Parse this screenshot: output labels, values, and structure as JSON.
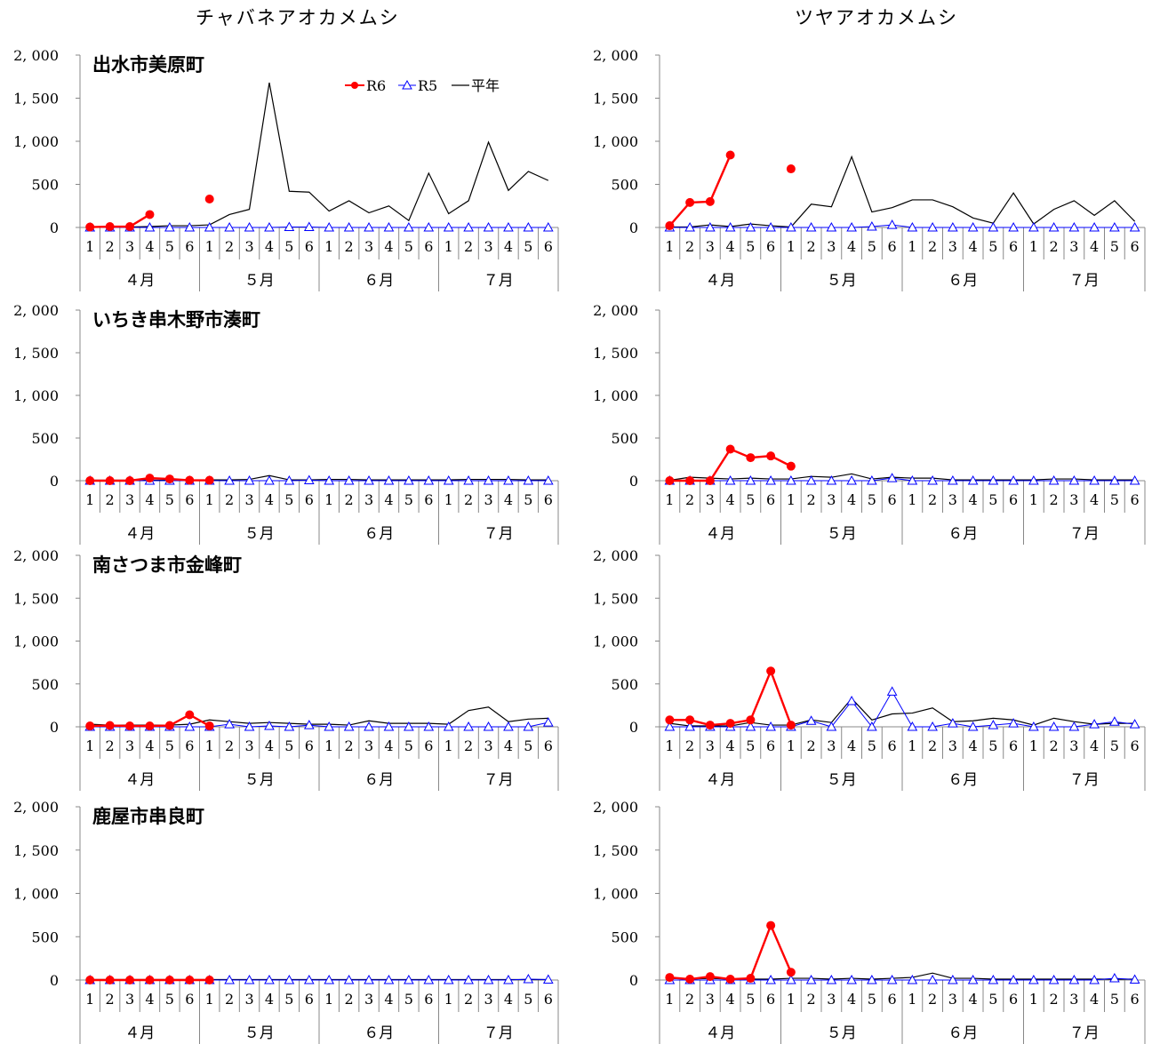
{
  "columns": [
    "チャバネアオカメムシ",
    "ツヤアオカメムシ"
  ],
  "legend": {
    "r6": "R6",
    "r5": "R5",
    "avg": "平年"
  },
  "colors": {
    "r6": "#ff0000",
    "r5": "#0000ff",
    "avg": "#000000"
  },
  "months": [
    "４月",
    "５月",
    "６月",
    "７月"
  ],
  "sub_ticks": [
    "1",
    "2",
    "3",
    "4",
    "5",
    "6"
  ],
  "y_ticks": [
    "0",
    "500",
    "1, 000",
    "1, 500",
    "2, 000"
  ],
  "chart_data": [
    {
      "type": "line",
      "location": "出水市美原町",
      "column": 0,
      "ylim": [
        0,
        2000
      ],
      "legend_placement": "top",
      "series": [
        {
          "name": "R6",
          "values": [
            5,
            10,
            10,
            150,
            null,
            null,
            330,
            null,
            null,
            null,
            null,
            null,
            null,
            null,
            null,
            null,
            null,
            null,
            null,
            null,
            null,
            null,
            null,
            null
          ]
        },
        {
          "name": "R5",
          "values": [
            0,
            0,
            0,
            0,
            0,
            0,
            0,
            0,
            0,
            0,
            5,
            5,
            0,
            0,
            0,
            0,
            0,
            0,
            0,
            0,
            0,
            0,
            0,
            0
          ]
        },
        {
          "name": "平年",
          "values": [
            10,
            5,
            5,
            10,
            20,
            20,
            30,
            150,
            210,
            1680,
            420,
            410,
            190,
            310,
            170,
            250,
            80,
            630,
            160,
            310,
            990,
            430,
            650,
            545
          ]
        }
      ]
    },
    {
      "type": "line",
      "location": "",
      "column": 1,
      "ylim": [
        0,
        2000
      ],
      "series": [
        {
          "name": "R6",
          "values": [
            20,
            290,
            300,
            840,
            null,
            null,
            680,
            null,
            null,
            null,
            null,
            null,
            null,
            null,
            null,
            null,
            null,
            null,
            null,
            null,
            null,
            null,
            null,
            null
          ]
        },
        {
          "name": "R5",
          "values": [
            0,
            0,
            0,
            0,
            0,
            0,
            0,
            0,
            0,
            0,
            10,
            30,
            0,
            0,
            0,
            0,
            0,
            0,
            0,
            0,
            0,
            0,
            0,
            0
          ]
        },
        {
          "name": "平年",
          "values": [
            5,
            5,
            30,
            10,
            40,
            20,
            5,
            270,
            240,
            820,
            180,
            230,
            320,
            320,
            240,
            110,
            50,
            400,
            40,
            210,
            310,
            140,
            310,
            70
          ]
        }
      ]
    },
    {
      "type": "line",
      "location": "いちき串木野市湊町",
      "column": 0,
      "ylim": [
        0,
        2000
      ],
      "series": [
        {
          "name": "R6",
          "values": [
            0,
            0,
            0,
            30,
            20,
            5,
            5,
            null,
            null,
            null,
            null,
            null,
            null,
            null,
            null,
            null,
            null,
            null,
            null,
            null,
            null,
            null,
            null,
            null
          ]
        },
        {
          "name": "R5",
          "values": [
            0,
            0,
            0,
            0,
            0,
            0,
            0,
            0,
            0,
            0,
            0,
            5,
            0,
            0,
            0,
            0,
            0,
            0,
            0,
            0,
            0,
            0,
            0,
            0
          ]
        },
        {
          "name": "平年",
          "values": [
            5,
            5,
            5,
            5,
            5,
            5,
            10,
            10,
            15,
            60,
            10,
            10,
            15,
            15,
            10,
            10,
            10,
            10,
            10,
            15,
            15,
            15,
            10,
            10
          ]
        }
      ]
    },
    {
      "type": "line",
      "location": "",
      "column": 1,
      "ylim": [
        0,
        2000
      ],
      "series": [
        {
          "name": "R6",
          "values": [
            0,
            0,
            0,
            370,
            270,
            290,
            170,
            null,
            null,
            null,
            null,
            null,
            null,
            null,
            null,
            null,
            null,
            null,
            null,
            null,
            null,
            null,
            null,
            null
          ]
        },
        {
          "name": "R5",
          "values": [
            0,
            0,
            0,
            0,
            0,
            0,
            0,
            0,
            0,
            0,
            0,
            30,
            0,
            0,
            0,
            0,
            0,
            0,
            0,
            0,
            0,
            0,
            0,
            0
          ]
        },
        {
          "name": "平年",
          "values": [
            5,
            40,
            30,
            20,
            30,
            20,
            20,
            50,
            40,
            80,
            20,
            40,
            30,
            30,
            10,
            10,
            10,
            10,
            10,
            20,
            20,
            10,
            10,
            10
          ]
        }
      ]
    },
    {
      "type": "line",
      "location": "南さつま市金峰町",
      "column": 0,
      "ylim": [
        0,
        2000
      ],
      "series": [
        {
          "name": "R6",
          "values": [
            10,
            15,
            10,
            10,
            15,
            140,
            10,
            null,
            null,
            null,
            null,
            null,
            null,
            null,
            null,
            null,
            null,
            null,
            null,
            null,
            null,
            null,
            null,
            null
          ]
        },
        {
          "name": "R5",
          "values": [
            0,
            0,
            0,
            0,
            0,
            0,
            0,
            30,
            0,
            10,
            0,
            20,
            0,
            0,
            0,
            0,
            0,
            0,
            0,
            0,
            0,
            0,
            0,
            50
          ]
        },
        {
          "name": "平年",
          "values": [
            30,
            20,
            20,
            20,
            20,
            30,
            80,
            60,
            40,
            50,
            40,
            30,
            30,
            20,
            70,
            40,
            40,
            40,
            30,
            190,
            230,
            60,
            90,
            100
          ]
        }
      ]
    },
    {
      "type": "line",
      "location": "",
      "column": 1,
      "ylim": [
        0,
        2000
      ],
      "series": [
        {
          "name": "R6",
          "values": [
            80,
            80,
            20,
            40,
            80,
            650,
            20,
            null,
            null,
            null,
            null,
            null,
            null,
            null,
            null,
            null,
            null,
            null,
            null,
            null,
            null,
            null,
            null,
            null
          ]
        },
        {
          "name": "R5",
          "values": [
            0,
            0,
            0,
            0,
            0,
            0,
            0,
            70,
            0,
            300,
            0,
            410,
            0,
            0,
            40,
            0,
            20,
            40,
            0,
            0,
            0,
            30,
            60,
            30
          ]
        },
        {
          "name": "平年",
          "values": [
            40,
            10,
            10,
            10,
            50,
            20,
            20,
            80,
            50,
            330,
            80,
            150,
            160,
            220,
            60,
            70,
            100,
            80,
            20,
            100,
            60,
            30,
            40,
            40
          ]
        }
      ]
    },
    {
      "type": "line",
      "location": "鹿屋市串良町",
      "column": 0,
      "ylim": [
        0,
        2000
      ],
      "series": [
        {
          "name": "R6",
          "values": [
            0,
            0,
            0,
            0,
            0,
            0,
            0,
            null,
            null,
            null,
            null,
            null,
            null,
            null,
            null,
            null,
            null,
            null,
            null,
            null,
            null,
            null,
            null,
            null
          ]
        },
        {
          "name": "R5",
          "values": [
            0,
            0,
            0,
            0,
            0,
            0,
            0,
            0,
            0,
            0,
            0,
            0,
            0,
            0,
            0,
            0,
            0,
            0,
            0,
            0,
            0,
            0,
            10,
            5
          ]
        },
        {
          "name": "平年",
          "values": [
            5,
            5,
            5,
            5,
            5,
            5,
            5,
            5,
            5,
            5,
            5,
            5,
            5,
            5,
            5,
            5,
            5,
            5,
            5,
            5,
            5,
            5,
            5,
            5
          ]
        }
      ]
    },
    {
      "type": "line",
      "location": "",
      "column": 1,
      "ylim": [
        0,
        2000
      ],
      "series": [
        {
          "name": "R6",
          "values": [
            30,
            10,
            40,
            10,
            20,
            630,
            90,
            null,
            null,
            null,
            null,
            null,
            null,
            null,
            null,
            null,
            null,
            null,
            null,
            null,
            null,
            null,
            null,
            null
          ]
        },
        {
          "name": "R5",
          "values": [
            0,
            0,
            0,
            0,
            0,
            0,
            0,
            0,
            0,
            0,
            0,
            0,
            0,
            0,
            0,
            0,
            0,
            0,
            0,
            0,
            0,
            0,
            20,
            5
          ]
        },
        {
          "name": "平年",
          "values": [
            20,
            10,
            20,
            10,
            10,
            10,
            20,
            20,
            10,
            20,
            10,
            20,
            30,
            80,
            20,
            20,
            10,
            10,
            10,
            10,
            10,
            10,
            10,
            10
          ]
        }
      ]
    }
  ]
}
